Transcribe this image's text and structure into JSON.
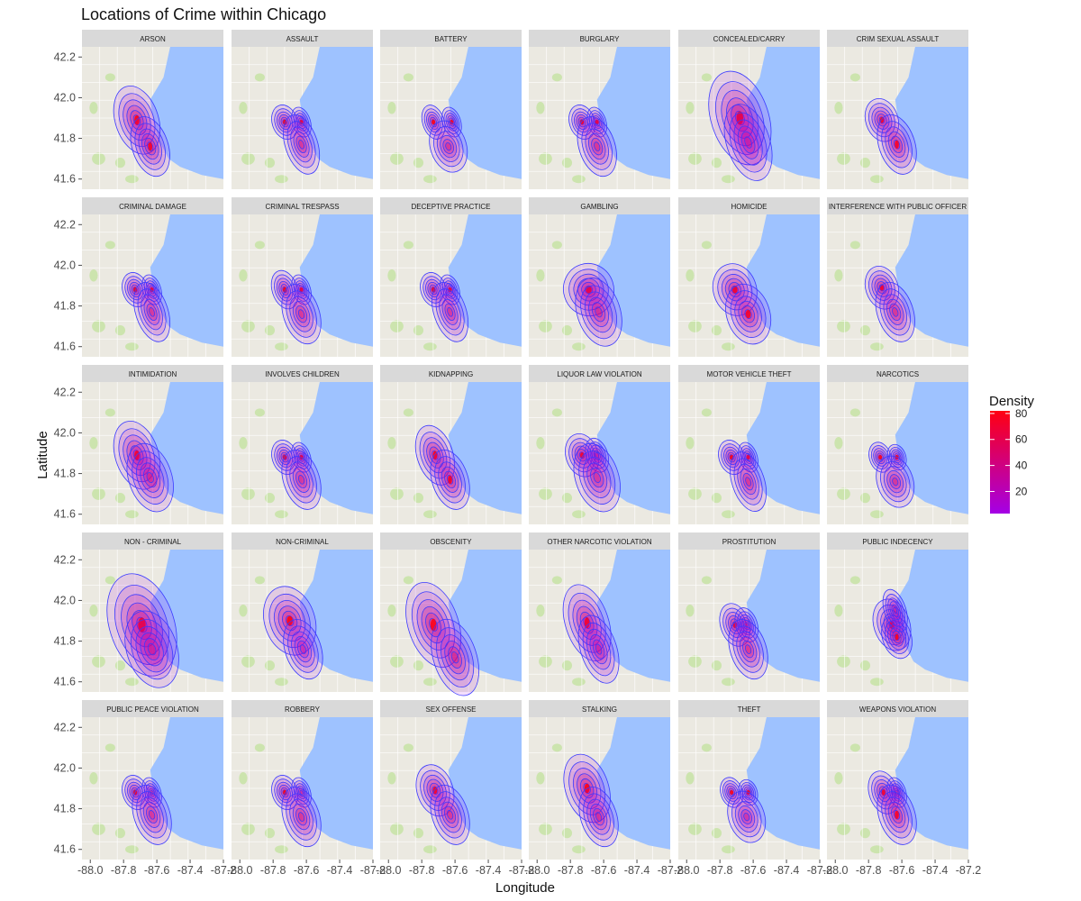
{
  "chart_data": {
    "type": "density-contour-facets",
    "title": "Locations of Crime within Chicago",
    "xlabel": "Longitude",
    "ylabel": "Latitude",
    "xlim": [
      -88.05,
      -87.2
    ],
    "ylim": [
      41.55,
      42.25
    ],
    "x_ticks": [
      "-88.0",
      "-87.8",
      "-87.6",
      "-87.4",
      "-87.2"
    ],
    "y_ticks": [
      "42.2",
      "42.0",
      "41.8",
      "41.6"
    ],
    "x_tick_values": [
      -88.0,
      -87.8,
      -87.6,
      -87.4,
      -87.2
    ],
    "y_tick_values": [
      42.2,
      42.0,
      41.8,
      41.6
    ],
    "legend": {
      "title": "Density",
      "ticks": [
        "20",
        "40",
        "60",
        "80"
      ],
      "tick_values": [
        20,
        40,
        60,
        80
      ],
      "range": [
        3,
        82
      ],
      "low_color": "#a400e6",
      "high_color": "#ff0011",
      "placement": "right"
    },
    "contour_color": "#3b3bff",
    "water_color": "#9ec2ff",
    "land_color": "#ebe9e1",
    "strip_color": "#d9d9d9",
    "facets": [
      {
        "label": "ARSON",
        "blobs": [
          [
            -87.72,
            41.89,
            0.06,
            0.08,
            1.0
          ],
          [
            -87.64,
            41.76,
            0.05,
            0.07,
            0.9
          ]
        ]
      },
      {
        "label": "ASSAULT",
        "blobs": [
          [
            -87.73,
            41.88,
            0.035,
            0.04,
            1.0
          ],
          [
            -87.63,
            41.88,
            0.025,
            0.035,
            0.9
          ],
          [
            -87.63,
            41.77,
            0.045,
            0.07,
            0.8
          ]
        ]
      },
      {
        "label": "BATTERY",
        "blobs": [
          [
            -87.73,
            41.88,
            0.03,
            0.04,
            1.0
          ],
          [
            -87.62,
            41.88,
            0.025,
            0.035,
            0.95
          ],
          [
            -87.64,
            41.76,
            0.05,
            0.06,
            0.8
          ]
        ]
      },
      {
        "label": "BURGLARY",
        "blobs": [
          [
            -87.73,
            41.88,
            0.035,
            0.04,
            1.0
          ],
          [
            -87.64,
            41.88,
            0.025,
            0.035,
            0.9
          ],
          [
            -87.64,
            41.76,
            0.05,
            0.07,
            0.85
          ]
        ]
      },
      {
        "label": "CONCEALED/CARRY",
        "blobs": [
          [
            -87.68,
            41.9,
            0.08,
            0.11,
            1.0
          ],
          [
            -87.63,
            41.78,
            0.06,
            0.09,
            0.6
          ]
        ]
      },
      {
        "label": "CRIM SEXUAL ASSAULT",
        "blobs": [
          [
            -87.72,
            41.89,
            0.045,
            0.05,
            1.0
          ],
          [
            -87.63,
            41.77,
            0.05,
            0.07,
            0.9
          ]
        ]
      },
      {
        "label": "CRIMINAL DAMAGE",
        "blobs": [
          [
            -87.73,
            41.88,
            0.035,
            0.04,
            1.0
          ],
          [
            -87.63,
            41.88,
            0.025,
            0.035,
            0.9
          ],
          [
            -87.63,
            41.77,
            0.045,
            0.07,
            0.8
          ]
        ]
      },
      {
        "label": "CRIMINAL TRESPASS",
        "blobs": [
          [
            -87.73,
            41.88,
            0.035,
            0.045,
            1.0
          ],
          [
            -87.63,
            41.88,
            0.025,
            0.035,
            0.9
          ],
          [
            -87.63,
            41.76,
            0.05,
            0.07,
            0.85
          ]
        ]
      },
      {
        "label": "DECEPTIVE PRACTICE",
        "blobs": [
          [
            -87.73,
            41.88,
            0.035,
            0.04,
            1.0
          ],
          [
            -87.63,
            41.88,
            0.025,
            0.035,
            0.95
          ],
          [
            -87.63,
            41.77,
            0.045,
            0.07,
            0.75
          ]
        ]
      },
      {
        "label": "GAMBLING",
        "blobs": [
          [
            -87.69,
            41.88,
            0.07,
            0.06,
            1.0
          ],
          [
            -87.63,
            41.77,
            0.06,
            0.08,
            0.8
          ]
        ]
      },
      {
        "label": "HOMICIDE",
        "blobs": [
          [
            -87.71,
            41.88,
            0.06,
            0.06,
            1.0
          ],
          [
            -87.63,
            41.76,
            0.06,
            0.07,
            0.9
          ]
        ]
      },
      {
        "label": "INTERFERENCE WITH PUBLIC OFFICER",
        "blobs": [
          [
            -87.72,
            41.89,
            0.045,
            0.05,
            1.0
          ],
          [
            -87.64,
            41.77,
            0.05,
            0.07,
            0.85
          ]
        ]
      },
      {
        "label": "INTIMIDATION",
        "blobs": [
          [
            -87.72,
            41.89,
            0.06,
            0.08,
            1.0
          ],
          [
            -87.64,
            41.78,
            0.06,
            0.08,
            0.8
          ]
        ]
      },
      {
        "label": "INVOLVES CHILDREN",
        "blobs": [
          [
            -87.73,
            41.88,
            0.035,
            0.04,
            1.0
          ],
          [
            -87.63,
            41.88,
            0.025,
            0.035,
            0.9
          ],
          [
            -87.63,
            41.77,
            0.05,
            0.07,
            0.8
          ]
        ]
      },
      {
        "label": "KIDNAPPING",
        "blobs": [
          [
            -87.72,
            41.89,
            0.05,
            0.07,
            1.0
          ],
          [
            -87.63,
            41.77,
            0.05,
            0.07,
            0.9
          ]
        ]
      },
      {
        "label": "LIQUOR LAW VIOLATION",
        "blobs": [
          [
            -87.73,
            41.89,
            0.045,
            0.05,
            1.0
          ],
          [
            -87.64,
            41.89,
            0.03,
            0.04,
            0.85
          ],
          [
            -87.64,
            41.78,
            0.06,
            0.08,
            0.7
          ]
        ]
      },
      {
        "label": "MOTOR VEHICLE THEFT",
        "blobs": [
          [
            -87.73,
            41.88,
            0.035,
            0.04,
            1.0
          ],
          [
            -87.63,
            41.88,
            0.025,
            0.035,
            0.9
          ],
          [
            -87.63,
            41.76,
            0.045,
            0.07,
            0.85
          ]
        ]
      },
      {
        "label": "NARCOTICS",
        "blobs": [
          [
            -87.73,
            41.88,
            0.03,
            0.035,
            1.0
          ],
          [
            -87.63,
            41.88,
            0.025,
            0.03,
            0.95
          ],
          [
            -87.64,
            41.76,
            0.05,
            0.06,
            0.8
          ]
        ]
      },
      {
        "label": "NON - CRIMINAL",
        "blobs": [
          [
            -87.69,
            41.88,
            0.09,
            0.12,
            1.0
          ],
          [
            -87.63,
            41.76,
            0.07,
            0.09,
            0.7
          ]
        ]
      },
      {
        "label": "NON-CRIMINAL",
        "blobs": [
          [
            -87.7,
            41.9,
            0.07,
            0.08,
            1.0
          ],
          [
            -87.62,
            41.76,
            0.05,
            0.07,
            0.5
          ]
        ]
      },
      {
        "label": "OBSCENITY",
        "blobs": [
          [
            -87.73,
            41.88,
            0.07,
            0.1,
            1.0
          ],
          [
            -87.6,
            41.72,
            0.06,
            0.09,
            0.85
          ]
        ]
      },
      {
        "label": "OTHER NARCOTIC VIOLATION",
        "blobs": [
          [
            -87.7,
            41.89,
            0.06,
            0.09,
            1.0
          ],
          [
            -87.63,
            41.76,
            0.05,
            0.08,
            0.6
          ]
        ]
      },
      {
        "label": "PROSTITUTION",
        "blobs": [
          [
            -87.71,
            41.88,
            0.04,
            0.05,
            1.0
          ],
          [
            -87.64,
            41.88,
            0.03,
            0.04,
            0.8
          ],
          [
            -87.63,
            41.76,
            0.05,
            0.07,
            0.85
          ]
        ]
      },
      {
        "label": "PUBLIC INDECENCY",
        "blobs": [
          [
            -87.66,
            41.88,
            0.05,
            0.06,
            1.0
          ],
          [
            -87.63,
            41.82,
            0.04,
            0.05,
            0.95
          ],
          [
            -87.64,
            41.95,
            0.03,
            0.05,
            0.6
          ]
        ]
      },
      {
        "label": "PUBLIC PEACE VIOLATION",
        "blobs": [
          [
            -87.73,
            41.88,
            0.035,
            0.04,
            1.0
          ],
          [
            -87.63,
            41.88,
            0.025,
            0.035,
            0.85
          ],
          [
            -87.63,
            41.77,
            0.05,
            0.07,
            0.8
          ]
        ]
      },
      {
        "label": "ROBBERY",
        "blobs": [
          [
            -87.73,
            41.88,
            0.035,
            0.04,
            1.0
          ],
          [
            -87.63,
            41.88,
            0.025,
            0.035,
            0.85
          ],
          [
            -87.63,
            41.76,
            0.05,
            0.07,
            0.85
          ]
        ]
      },
      {
        "label": "SEX OFFENSE",
        "blobs": [
          [
            -87.72,
            41.89,
            0.05,
            0.06,
            1.0
          ],
          [
            -87.63,
            41.77,
            0.05,
            0.07,
            0.85
          ]
        ]
      },
      {
        "label": "STALKING",
        "blobs": [
          [
            -87.7,
            41.9,
            0.06,
            0.08,
            1.0
          ],
          [
            -87.63,
            41.76,
            0.05,
            0.07,
            0.8
          ]
        ]
      },
      {
        "label": "THEFT",
        "blobs": [
          [
            -87.73,
            41.88,
            0.03,
            0.035,
            1.0
          ],
          [
            -87.63,
            41.88,
            0.025,
            0.03,
            0.95
          ],
          [
            -87.64,
            41.76,
            0.05,
            0.06,
            0.6
          ]
        ]
      },
      {
        "label": "WEAPONS VIOLATION",
        "blobs": [
          [
            -87.71,
            41.88,
            0.04,
            0.05,
            1.0
          ],
          [
            -87.63,
            41.88,
            0.025,
            0.035,
            0.8
          ],
          [
            -87.63,
            41.77,
            0.05,
            0.07,
            0.9
          ]
        ]
      }
    ]
  }
}
